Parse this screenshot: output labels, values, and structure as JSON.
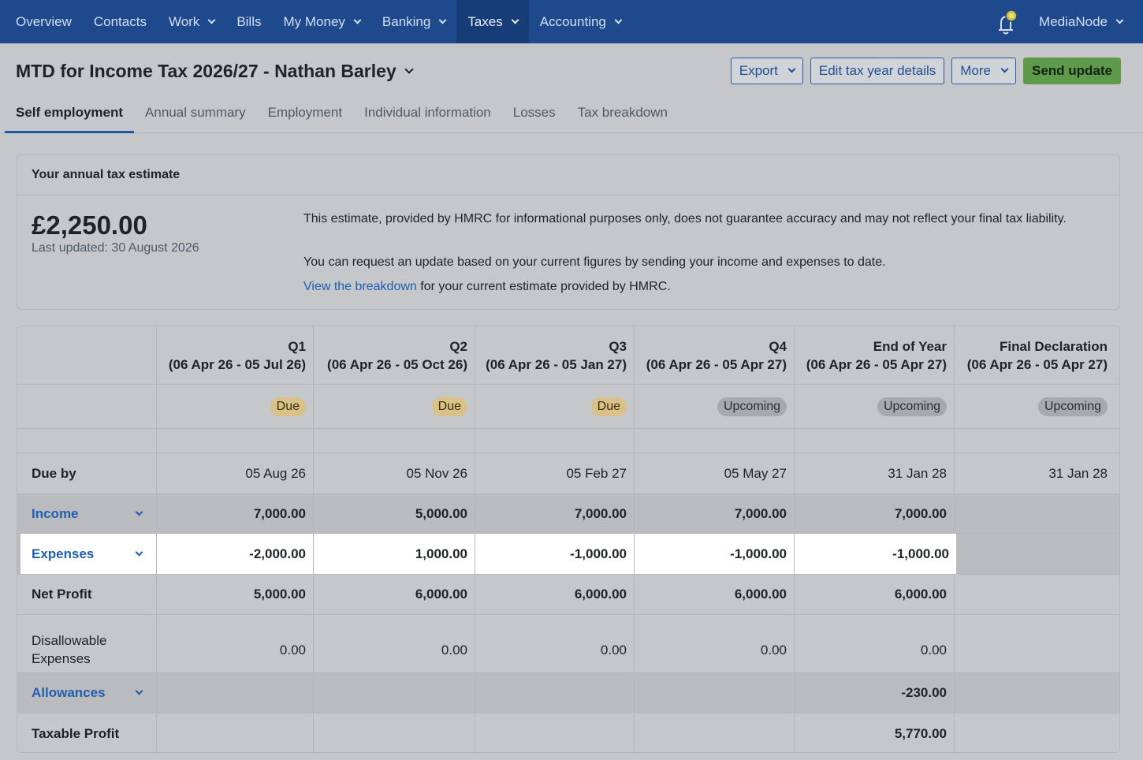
{
  "nav": {
    "items": [
      "Overview",
      "Contacts",
      "Work",
      "Bills",
      "My Money",
      "Banking",
      "Taxes",
      "Accounting"
    ],
    "user": "MediaNode"
  },
  "header": {
    "title": "MTD for Income Tax 2026/27 - Nathan Barley",
    "buttons": {
      "export": "Export",
      "edit": "Edit tax year details",
      "more": "More",
      "send": "Send update"
    },
    "tabs": [
      "Self employment",
      "Annual summary",
      "Employment",
      "Individual information",
      "Losses",
      "Tax breakdown"
    ]
  },
  "estimate": {
    "heading": "Your annual tax estimate",
    "amount": "£2,250.00",
    "last_updated": "Last updated: 30 August 2026",
    "line1": "This estimate, provided by HMRC for informational purposes only, does not guarantee accuracy and may not reflect your final tax liability.",
    "line2": "You can request an update based on your current figures by sending your income and expenses to date.",
    "link": "View the breakdown",
    "line3_rest": " for your current estimate provided by HMRC."
  },
  "table": {
    "columns": [
      {
        "title": "Q1",
        "range": "(06 Apr 26 - 05 Jul 26)",
        "status": "Due",
        "due_by": "05 Aug 26"
      },
      {
        "title": "Q2",
        "range": "(06 Apr 26 - 05 Oct 26)",
        "status": "Due",
        "due_by": "05 Nov 26"
      },
      {
        "title": "Q3",
        "range": "(06 Apr 26 - 05 Jan 27)",
        "status": "Due",
        "due_by": "05 Feb 27"
      },
      {
        "title": "Q4",
        "range": "(06 Apr 26 - 05 Apr 27)",
        "status": "Upcoming",
        "due_by": "05 May 27"
      },
      {
        "title": "End of Year",
        "range": "(06 Apr 26 - 05 Apr 27)",
        "status": "Upcoming",
        "due_by": "31 Jan 28"
      },
      {
        "title": "Final Declaration",
        "range": "(06 Apr 26 - 05 Apr 27)",
        "status": "Upcoming",
        "due_by": "31 Jan 28"
      }
    ],
    "labels": {
      "due_by": "Due by",
      "income": "Income",
      "expenses": "Expenses",
      "net_profit": "Net Profit",
      "disallowable": "Disallowable Expenses",
      "allowances": "Allowances",
      "taxable_profit": "Taxable Profit"
    },
    "income": [
      "7,000.00",
      "5,000.00",
      "7,000.00",
      "7,000.00",
      "7,000.00",
      ""
    ],
    "expenses": [
      "-2,000.00",
      "1,000.00",
      "-1,000.00",
      "-1,000.00",
      "-1,000.00",
      ""
    ],
    "net_profit": [
      "5,000.00",
      "6,000.00",
      "6,000.00",
      "6,000.00",
      "6,000.00",
      ""
    ],
    "disallowable": [
      "0.00",
      "0.00",
      "0.00",
      "0.00",
      "0.00",
      ""
    ],
    "allowances": [
      "",
      "",
      "",
      "",
      "-230.00",
      ""
    ],
    "taxable_profit": [
      "",
      "",
      "",
      "",
      "5,770.00",
      ""
    ]
  }
}
